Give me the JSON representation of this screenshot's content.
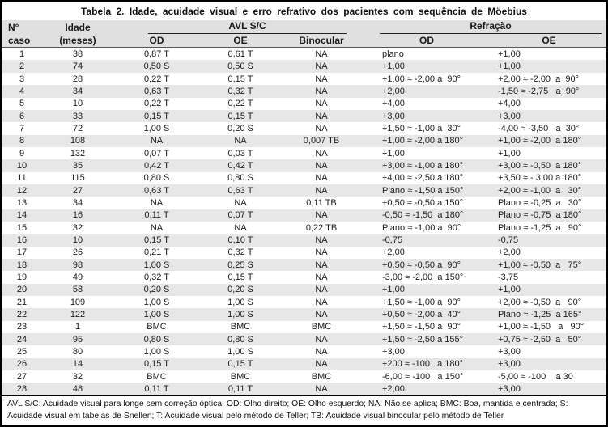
{
  "title": "Tabela 2. Idade, acuidade visual e erro refrativo dos pacientes com sequência de Möebius",
  "header": {
    "caso_line1": "N°",
    "caso_line2": "caso",
    "idade_line1": "Idade",
    "idade_line2": "(meses)",
    "group_avl": "AVL S/C",
    "group_refracao": "Refração",
    "avl_od": "OD",
    "avl_oe": "OE",
    "avl_binocular": "Binocular",
    "refr_od": "OD",
    "refr_oe": "OE"
  },
  "columns": [
    "caso",
    "idade",
    "avl_od",
    "avl_oe",
    "binocular",
    "refr_od",
    "refr_oe"
  ],
  "rows": [
    [
      "1",
      "38",
      "0,87 T",
      "0,61 T",
      "NA",
      "plano",
      "+1,00"
    ],
    [
      "2",
      "74",
      "0,50 S",
      "0,50 S",
      "NA",
      "+1,00",
      "+1,00"
    ],
    [
      "3",
      "28",
      "0,22 T",
      "0,15 T",
      "NA",
      "+1,00 ≈ -2,00 a  90°",
      "+2,00 ≈ -2,00  a  90°"
    ],
    [
      "4",
      "34",
      "0,63 T",
      "0,32 T",
      "NA",
      "+2,00",
      "-1,50 ≈ -2,75   a  90°"
    ],
    [
      "5",
      "10",
      "0,22 T",
      "0,22 T",
      "NA",
      "+4,00",
      "+4,00"
    ],
    [
      "6",
      "33",
      "0,15 T",
      "0,15 T",
      "NA",
      "+3,00",
      "+3,00"
    ],
    [
      "7",
      "72",
      "1,00 S",
      "0,20 S",
      "NA",
      "+1,50 ≈ -1,00 a  30°",
      "-4,00 ≈ -3,50   a  30°"
    ],
    [
      "8",
      "108",
      "NA",
      "NA",
      "0,007 TB",
      "+1,00 ≈ -2,00 a 180°",
      "+1,00 ≈ -2,00  a 180°"
    ],
    [
      "9",
      "132",
      "0,07 T",
      "0,03 T",
      "NA",
      "+1,00",
      "+1,00"
    ],
    [
      "10",
      "35",
      "0,42 T",
      "0,42 T",
      "NA",
      "+3,00 ≈ -1,00 a 180°",
      "+3,00 ≈ -0,50  a 180°"
    ],
    [
      "11",
      "115",
      "0,80 S",
      "0,80 S",
      "NA",
      "+4,00 ≈ -2,50 a 180°",
      "+3,50 ≈ - 3,00 a 180°"
    ],
    [
      "12",
      "27",
      "0,63 T",
      "0,63 T",
      "NA",
      "Plano ≈ -1,50 a 150°",
      "+2,00 ≈ -1,00  a   30°"
    ],
    [
      "13",
      "34",
      "NA",
      "NA",
      "0,11 TB",
      "+0,50 ≈ -0,50 a 150°",
      "Plano ≈ -0,25  a   30°"
    ],
    [
      "14",
      "16",
      "0,11 T",
      "0,07 T",
      "NA",
      "-0,50 ≈ -1,50  a 180°",
      "Plano ≈ -0,75  a 180°"
    ],
    [
      "15",
      "32",
      "NA",
      "NA",
      "0,22 TB",
      "Plano ≈ -1,00 a  90°",
      "Plano ≈ -1,25  a   90°"
    ],
    [
      "16",
      "10",
      "0,15 T",
      "0,10 T",
      "NA",
      "-0,75",
      "-0,75"
    ],
    [
      "17",
      "26",
      "0,21 T",
      "0,32 T",
      "NA",
      "+2,00",
      "+2,00"
    ],
    [
      "18",
      "98",
      "1,00 S",
      "0,25 S",
      "NA",
      "+0,50 ≈ -0,50 a  90°",
      "+1,00 ≈ -0,50  a   75°"
    ],
    [
      "19",
      "49",
      "0,32 T",
      "0,15 T",
      "NA",
      "-3,00 ≈ -2,00  a 150°",
      "-3,75"
    ],
    [
      "20",
      "58",
      "0,20 S",
      "0,20 S",
      "NA",
      "+1,00",
      "+1,00"
    ],
    [
      "21",
      "109",
      "1,00 S",
      "1,00 S",
      "NA",
      "+1,50 ≈ -1,00 a  90°",
      "+2,00 ≈ -0,50  a   90°"
    ],
    [
      "22",
      "122",
      "1,00 S",
      "1,00 S",
      "NA",
      "+0,50 ≈ -2,00 a  40°",
      "Plano ≈ -1,25  a 165°"
    ],
    [
      "23",
      "1",
      "BMC",
      "BMC",
      "BMC",
      "+1,50 ≈ -1,50 a  90°",
      "+1,00 ≈ -1,50   a   90°"
    ],
    [
      "24",
      "95",
      "0,80 S",
      "0,80 S",
      "NA",
      "+1,50 ≈ -2,50 a 155°",
      "+0,75 ≈ -2,50  a   50°"
    ],
    [
      "25",
      "80",
      "1,00 S",
      "1,00 S",
      "NA",
      "+3,00",
      "+3,00"
    ],
    [
      "26",
      "14",
      "0,15 T",
      "0,15 T",
      "NA",
      "+200 ≈ -100   a 180°",
      "+3,00"
    ],
    [
      "27",
      "32",
      "BMC",
      "BMC",
      "BMC",
      "-6,00 ≈ -100   a 150°",
      "-5,00 ≈ -100    a 30"
    ],
    [
      "28",
      "48",
      "0,11 T",
      "0,11 T",
      "NA",
      "+2,00",
      "+3,00"
    ]
  ],
  "footnote": "AVL S/C: Acuidade visual para longe sem correção óptica; OD: Olho direito; OE: Olho esquerdo; NA: Não se aplica; BMC: Boa, mantida e centrada; S: Acuidade visual em tabelas de Snellen; T: Acuidade visual pelo método de Teller; TB: Acuidade visual binocular pelo método de Teller",
  "colors": {
    "header_bg": "#e0e0e0",
    "row_alt_bg": "#e7e7e7",
    "border": "#000000",
    "text": "#1c1c1c"
  }
}
